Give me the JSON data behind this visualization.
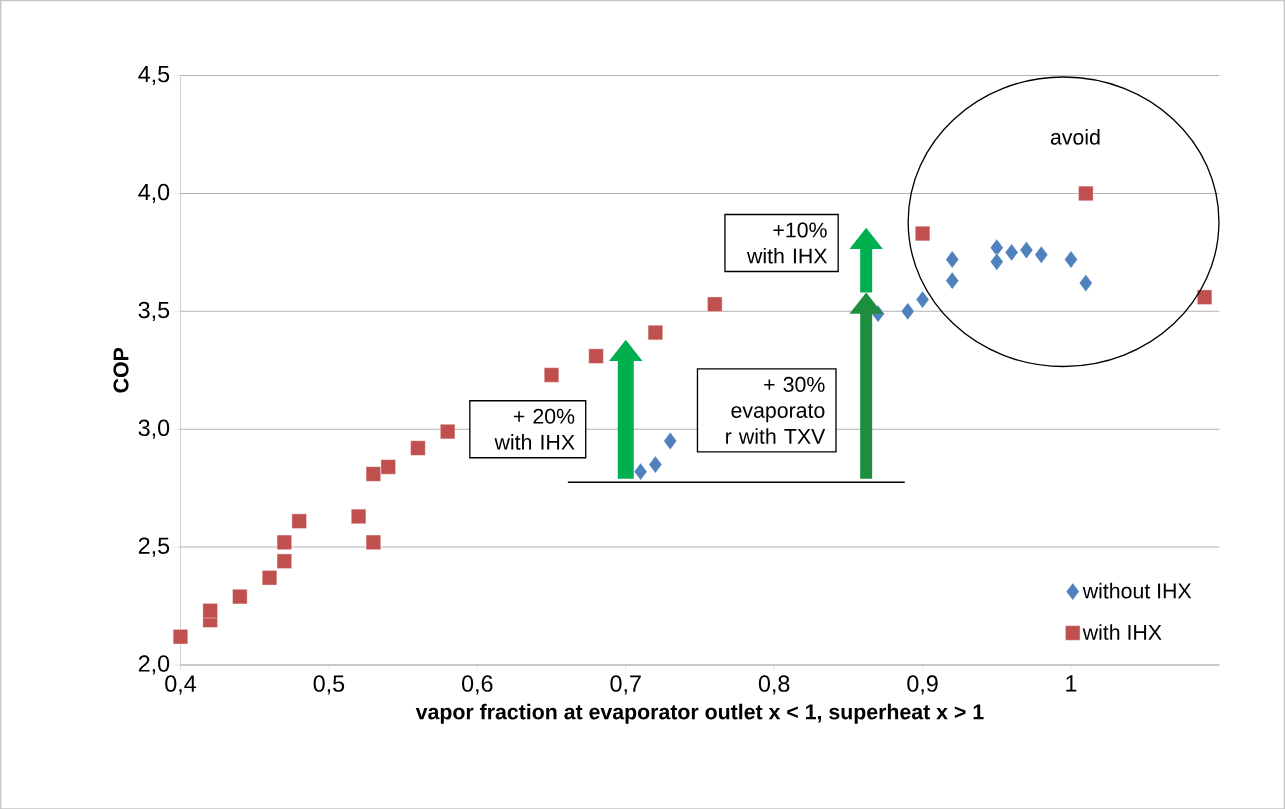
{
  "chart_data": {
    "type": "scatter",
    "xlabel": "vapor fraction at evaporator outlet x < 1, superheat x > 1",
    "ylabel": "COP",
    "xlim": [
      0.4,
      1.1
    ],
    "ylim": [
      2.0,
      4.5
    ],
    "xticks": [
      {
        "value": 0.4,
        "label": "0,4"
      },
      {
        "value": 0.5,
        "label": "0,5"
      },
      {
        "value": 0.6,
        "label": "0,6"
      },
      {
        "value": 0.7,
        "label": "0,7"
      },
      {
        "value": 0.8,
        "label": "0,8"
      },
      {
        "value": 0.9,
        "label": "0,9"
      },
      {
        "value": 1.0,
        "label": "1"
      }
    ],
    "yticks": [
      {
        "value": 2.0,
        "label": "2,0"
      },
      {
        "value": 2.5,
        "label": "2,5"
      },
      {
        "value": 3.0,
        "label": "3,0"
      },
      {
        "value": 3.5,
        "label": "3,5"
      },
      {
        "value": 4.0,
        "label": "4,0"
      },
      {
        "value": 4.5,
        "label": "4,5"
      }
    ],
    "grid": "y",
    "legend": "bottom right",
    "series": [
      {
        "name": "without IHX",
        "color": "#4f81bd",
        "marker": "diamond",
        "x": [
          0.71,
          0.72,
          0.73,
          0.86,
          0.87,
          0.89,
          0.9,
          0.92,
          0.92,
          0.95,
          0.95,
          0.96,
          0.97,
          0.98,
          1.0,
          1.01
        ],
        "values": [
          2.82,
          2.85,
          2.95,
          null,
          3.49,
          3.5,
          3.55,
          3.72,
          3.63,
          3.77,
          3.71,
          3.75,
          3.76,
          3.74,
          3.72,
          3.62
        ]
      },
      {
        "name": "with IHX",
        "color": "#c0504d",
        "marker": "square",
        "x": [
          0.4,
          0.42,
          0.42,
          0.44,
          0.46,
          0.47,
          0.47,
          0.48,
          0.52,
          0.53,
          0.53,
          0.54,
          0.56,
          0.58,
          0.65,
          0.68,
          0.72,
          0.76,
          0.9,
          1.01,
          1.09
        ],
        "values": [
          2.12,
          2.19,
          2.23,
          2.29,
          2.37,
          2.44,
          2.52,
          2.61,
          2.63,
          2.52,
          2.81,
          2.84,
          2.92,
          2.99,
          3.23,
          3.31,
          3.41,
          3.53,
          3.83,
          4.0,
          3.56
        ]
      }
    ],
    "annotations": [
      "+10% with IHX",
      "+ 20% with IHX",
      "+ 30% evaporato r with TXV",
      "avoid"
    ]
  }
}
